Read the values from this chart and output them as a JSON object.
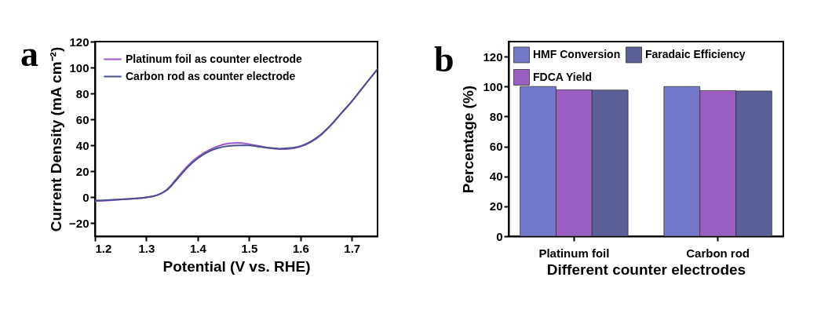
{
  "chart_data": [
    {
      "type": "line",
      "title": "a",
      "xlabel": "Potential (V vs. RHE)",
      "ylabel": "Current Density (mA cm⁻²)",
      "xlim": [
        1.2,
        1.75
      ],
      "ylim": [
        -30,
        120
      ],
      "xticks": [
        1.2,
        1.3,
        1.4,
        1.5,
        1.6,
        1.7
      ],
      "yticks": [
        -20,
        0,
        20,
        40,
        60,
        80,
        100,
        120
      ],
      "grid": false,
      "legend": "top left",
      "line_style": "solid",
      "x": [
        1.2,
        1.25,
        1.3,
        1.32,
        1.34,
        1.36,
        1.38,
        1.4,
        1.42,
        1.44,
        1.46,
        1.48,
        1.5,
        1.52,
        1.54,
        1.56,
        1.58,
        1.6,
        1.62,
        1.64,
        1.66,
        1.68,
        1.7,
        1.72,
        1.75
      ],
      "series": [
        {
          "name": "Platinum foil as counter electrode",
          "color": "#9b59c9",
          "values": [
            -3,
            -1.8,
            0,
            1.5,
            6,
            15,
            24,
            31,
            36,
            39.5,
            41.5,
            42,
            41,
            39.5,
            38,
            37.2,
            37.5,
            39,
            42.5,
            48,
            56,
            65,
            74,
            84,
            99
          ]
        },
        {
          "name": "Carbon rod as counter electrode",
          "color": "#4a4f8e",
          "values": [
            -2.5,
            -1.5,
            0,
            1.5,
            5.5,
            14,
            23,
            30,
            35,
            38,
            39.5,
            40,
            40,
            39,
            38,
            37.5,
            38,
            39.5,
            43,
            48.5,
            56,
            65,
            74,
            84,
            98.5
          ]
        }
      ]
    },
    {
      "type": "bar",
      "title": "b",
      "xlabel": "Different counter electrodes",
      "ylabel": "Percentage (%)",
      "ylim": [
        0,
        130
      ],
      "yticks": [
        0,
        20,
        40,
        60,
        80,
        100,
        120
      ],
      "grid": false,
      "legend": "top left",
      "categories": [
        "Platinum foil",
        "Carbon rod"
      ],
      "series": [
        {
          "name": "HMF Conversion",
          "color": "#7478c8",
          "values": [
            100,
            100
          ]
        },
        {
          "name": "FDCA Yield",
          "color": "#9a5fc0",
          "values": [
            97.8,
            97.3
          ]
        },
        {
          "name": "Faradaic Efficiency",
          "color": "#5a5f98",
          "values": [
            97.6,
            97
          ]
        }
      ]
    }
  ]
}
